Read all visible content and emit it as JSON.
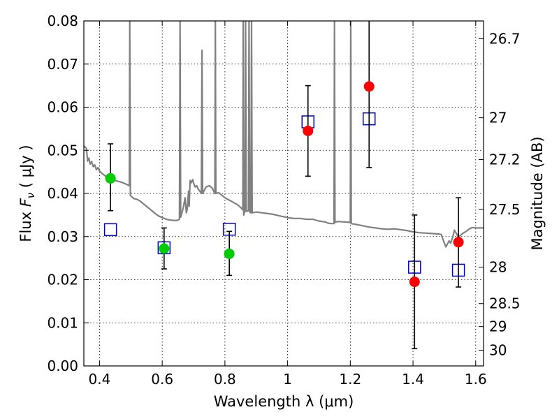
{
  "chart_data": {
    "type": "scatter",
    "title": "",
    "xlabel": "Wavelength  λ (μm)",
    "ylabel": "Flux  F_ν  ( μJy )",
    "y2label": "Magnitude (AB)",
    "xlim": [
      0.35,
      1.625
    ],
    "ylim": [
      0.0,
      0.08
    ],
    "grid": true,
    "x_ticks": [
      0.4,
      0.6,
      0.8,
      1.0,
      1.2,
      1.4,
      1.6
    ],
    "x_tick_labels": [
      "0.4",
      "0.6",
      "0.8",
      "1",
      "1.2",
      "1.4",
      "1.6"
    ],
    "y_ticks": [
      0.0,
      0.01,
      0.02,
      0.03,
      0.04,
      0.05,
      0.06,
      0.07,
      0.08
    ],
    "y_tick_labels": [
      "0.00",
      "0.01",
      "0.02",
      "0.03",
      "0.04",
      "0.05",
      "0.06",
      "0.07",
      "0.08"
    ],
    "y2_ticks": [
      26.7,
      27,
      27.2,
      27.5,
      28,
      28.5,
      29,
      30
    ],
    "y2_tick_labels": [
      "26.7",
      "27",
      "27.2",
      "27.5",
      "28",
      "28.5",
      "29",
      "30"
    ],
    "colors": {
      "template": "#808080",
      "green_points": "#00cc00",
      "red_points": "#ff0000",
      "model_squares": "#0000cc",
      "errorbars": "#000000"
    },
    "series": [
      {
        "kind": "template",
        "points": [
          [
            0.35,
            0.051
          ],
          [
            0.358,
            0.0505
          ],
          [
            0.362,
            0.0475
          ],
          [
            0.366,
            0.0482
          ],
          [
            0.37,
            0.0468
          ],
          [
            0.375,
            0.0474
          ],
          [
            0.38,
            0.0462
          ],
          [
            0.385,
            0.0466
          ],
          [
            0.39,
            0.0455
          ],
          [
            0.395,
            0.046
          ],
          [
            0.4,
            0.0452
          ],
          [
            0.41,
            0.0445
          ],
          [
            0.42,
            0.044
          ],
          [
            0.43,
            0.0437
          ],
          [
            0.44,
            0.0433
          ],
          [
            0.45,
            0.043
          ],
          [
            0.46,
            0.0428
          ],
          [
            0.47,
            0.0426
          ],
          [
            0.48,
            0.0423
          ],
          [
            0.495,
            0.0418
          ],
          [
            0.4965,
            0.08
          ],
          [
            0.4985,
            0.0395
          ],
          [
            0.51,
            0.0388
          ],
          [
            0.52,
            0.0386
          ],
          [
            0.53,
            0.0382
          ],
          [
            0.54,
            0.0376
          ],
          [
            0.55,
            0.037
          ],
          [
            0.56,
            0.0364
          ],
          [
            0.57,
            0.0358
          ],
          [
            0.58,
            0.0352
          ],
          [
            0.59,
            0.0347
          ],
          [
            0.6,
            0.0344
          ],
          [
            0.61,
            0.0341
          ],
          [
            0.62,
            0.0339
          ],
          [
            0.63,
            0.0338
          ],
          [
            0.645,
            0.0337
          ],
          [
            0.655,
            0.034
          ],
          [
            0.657,
            0.08
          ],
          [
            0.659,
            0.0345
          ],
          [
            0.663,
            0.0355
          ],
          [
            0.668,
            0.037
          ],
          [
            0.673,
            0.039
          ],
          [
            0.677,
            0.0355
          ],
          [
            0.68,
            0.0365
          ],
          [
            0.684,
            0.0405
          ],
          [
            0.686,
            0.037
          ],
          [
            0.689,
            0.043
          ],
          [
            0.693,
            0.0425
          ],
          [
            0.697,
            0.0432
          ],
          [
            0.701,
            0.0422
          ],
          [
            0.705,
            0.0415
          ],
          [
            0.71,
            0.0418
          ],
          [
            0.715,
            0.041
          ],
          [
            0.72,
            0.0405
          ],
          [
            0.725,
            0.04
          ],
          [
            0.727,
            0.0732
          ],
          [
            0.729,
            0.04
          ],
          [
            0.74,
            0.0415
          ],
          [
            0.75,
            0.0418
          ],
          [
            0.76,
            0.0412
          ],
          [
            0.768,
            0.04
          ],
          [
            0.7695,
            0.08
          ],
          [
            0.771,
            0.04
          ],
          [
            0.78,
            0.0402
          ],
          [
            0.79,
            0.0396
          ],
          [
            0.8,
            0.039
          ],
          [
            0.81,
            0.0386
          ],
          [
            0.82,
            0.0382
          ],
          [
            0.83,
            0.0378
          ],
          [
            0.84,
            0.0374
          ],
          [
            0.85,
            0.0368
          ],
          [
            0.857,
            0.0362
          ],
          [
            0.8585,
            0.08
          ],
          [
            0.86,
            0.035
          ],
          [
            0.864,
            0.036
          ],
          [
            0.866,
            0.08
          ],
          [
            0.868,
            0.0358
          ],
          [
            0.875,
            0.036
          ],
          [
            0.877,
            0.08
          ],
          [
            0.879,
            0.0357
          ],
          [
            0.883,
            0.0355
          ],
          [
            0.885,
            0.08
          ],
          [
            0.887,
            0.0355
          ],
          [
            0.9,
            0.0357
          ],
          [
            0.92,
            0.0355
          ],
          [
            0.95,
            0.0352
          ],
          [
            0.98,
            0.0347
          ],
          [
            1.0,
            0.0344
          ],
          [
            1.02,
            0.0342
          ],
          [
            1.04,
            0.0342
          ],
          [
            1.06,
            0.034
          ],
          [
            1.08,
            0.034
          ],
          [
            1.1,
            0.0336
          ],
          [
            1.12,
            0.0334
          ],
          [
            1.13,
            0.0331
          ],
          [
            1.14,
            0.033
          ],
          [
            1.148,
            0.033
          ],
          [
            1.1495,
            0.08
          ],
          [
            1.151,
            0.0333
          ],
          [
            1.16,
            0.0335
          ],
          [
            1.18,
            0.0334
          ],
          [
            1.198,
            0.0333
          ],
          [
            1.2,
            0.0332
          ],
          [
            1.2015,
            0.08
          ],
          [
            1.203,
            0.033
          ],
          [
            1.22,
            0.0328
          ],
          [
            1.24,
            0.0325
          ],
          [
            1.26,
            0.0322
          ],
          [
            1.28,
            0.032
          ],
          [
            1.3,
            0.0318
          ],
          [
            1.32,
            0.0317
          ],
          [
            1.34,
            0.0318
          ],
          [
            1.36,
            0.0316
          ],
          [
            1.38,
            0.0314
          ],
          [
            1.4,
            0.0311
          ],
          [
            1.42,
            0.0309
          ],
          [
            1.44,
            0.0308
          ],
          [
            1.46,
            0.0307
          ],
          [
            1.48,
            0.0306
          ],
          [
            1.49,
            0.0305
          ],
          [
            1.5,
            0.0285
          ],
          [
            1.505,
            0.0276
          ],
          [
            1.51,
            0.0283
          ],
          [
            1.515,
            0.029
          ],
          [
            1.52,
            0.0285
          ],
          [
            1.528,
            0.0302
          ],
          [
            1.532,
            0.0315
          ],
          [
            1.54,
            0.0305
          ],
          [
            1.545,
            0.0297
          ],
          [
            1.55,
            0.0302
          ],
          [
            1.56,
            0.0308
          ],
          [
            1.57,
            0.0312
          ],
          [
            1.58,
            0.0318
          ],
          [
            1.59,
            0.0321
          ],
          [
            1.6,
            0.032
          ],
          [
            1.625,
            0.032
          ]
        ]
      },
      {
        "kind": "observed_green",
        "points": [
          {
            "x": 0.435,
            "y": 0.0435,
            "err_lo": 0.036,
            "err_hi": 0.0515
          },
          {
            "x": 0.606,
            "y": 0.0272,
            "err_lo": 0.0225,
            "err_hi": 0.032
          },
          {
            "x": 0.814,
            "y": 0.026,
            "err_lo": 0.021,
            "err_hi": 0.0312
          }
        ]
      },
      {
        "kind": "observed_red",
        "points": [
          {
            "x": 1.065,
            "y": 0.0545,
            "err_lo": 0.044,
            "err_hi": 0.065
          },
          {
            "x": 1.26,
            "y": 0.0648,
            "err_lo": 0.046,
            "err_hi": 0.084
          },
          {
            "x": 1.405,
            "y": 0.0195,
            "err_lo": 0.004,
            "err_hi": 0.035
          },
          {
            "x": 1.545,
            "y": 0.0287,
            "err_lo": 0.0183,
            "err_hi": 0.039
          }
        ]
      },
      {
        "kind": "model_squares",
        "points": [
          {
            "x": 0.435,
            "y": 0.0316
          },
          {
            "x": 0.606,
            "y": 0.0274
          },
          {
            "x": 0.814,
            "y": 0.0317
          },
          {
            "x": 1.065,
            "y": 0.0566
          },
          {
            "x": 1.26,
            "y": 0.0573
          },
          {
            "x": 1.405,
            "y": 0.0229
          },
          {
            "x": 1.545,
            "y": 0.0222
          }
        ]
      }
    ]
  }
}
